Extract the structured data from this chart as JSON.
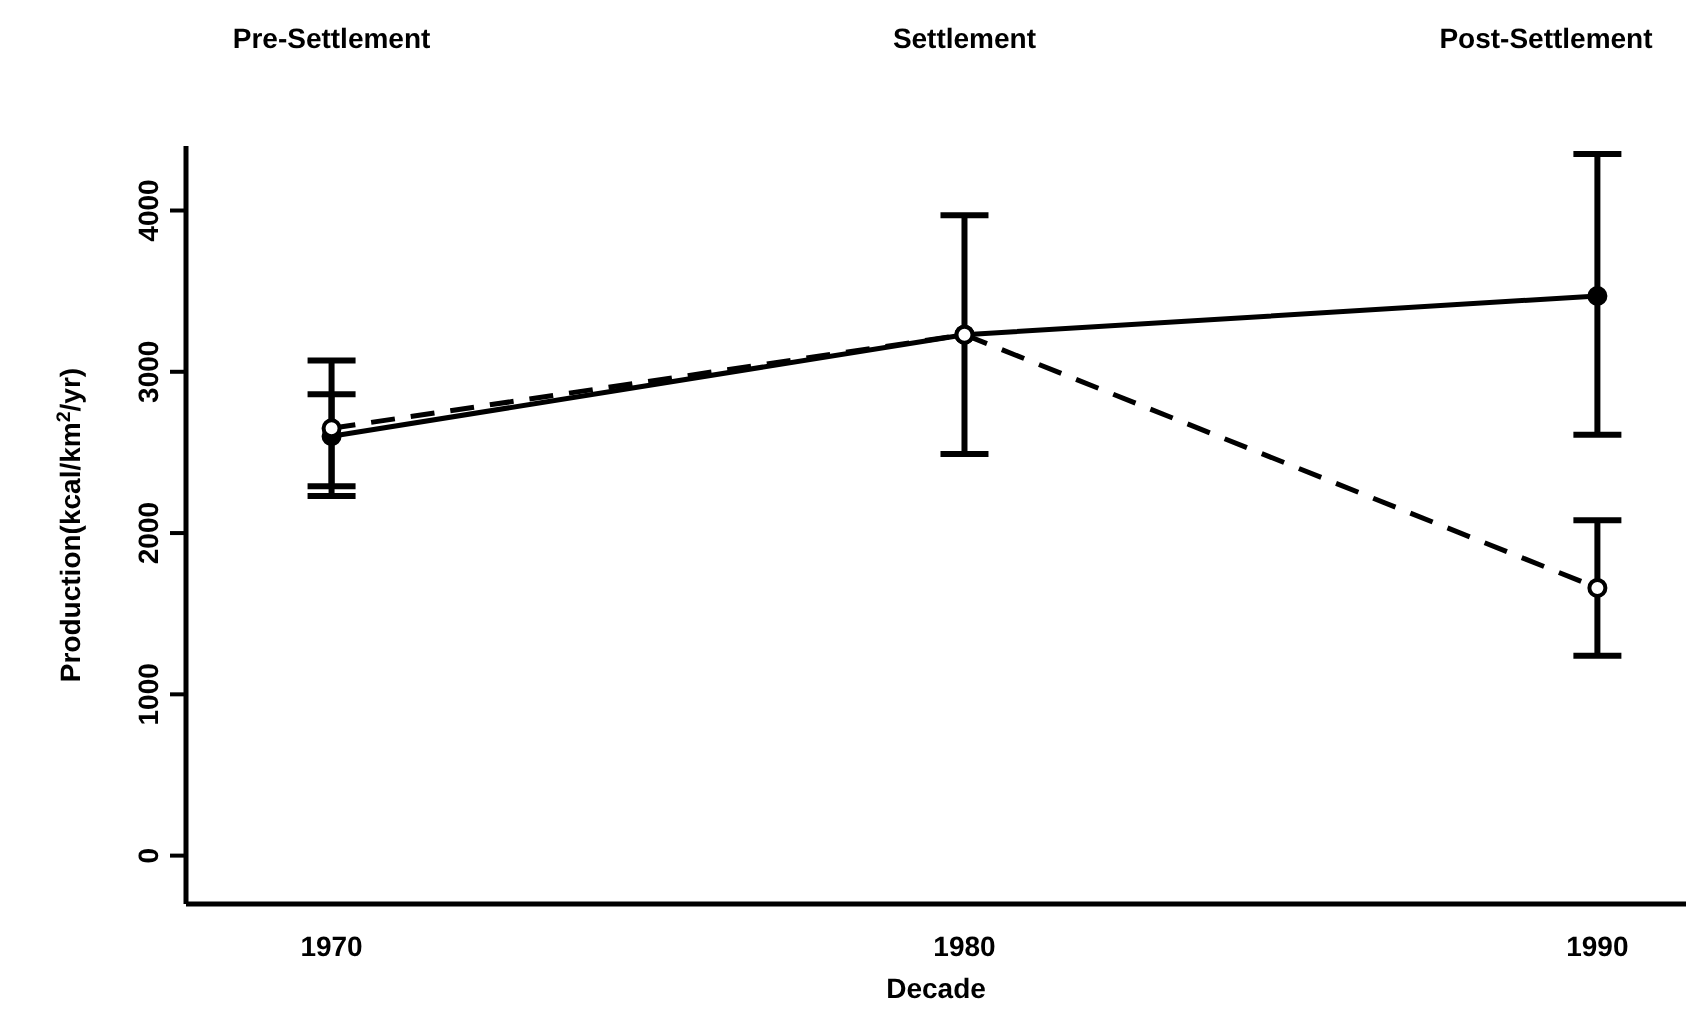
{
  "chart_data": {
    "type": "line",
    "xlabel": "Decade",
    "ylabel": "Production(kcal/km$^{2}$/yr)",
    "x": [
      1970,
      1980,
      1990
    ],
    "xlim": [
      1967.7,
      1991.4
    ],
    "xticks": [
      1970,
      1980,
      1990
    ],
    "ylim": [
      -300,
      4400
    ],
    "yticks": [
      0,
      1000,
      2000,
      3000,
      4000
    ],
    "grid": false,
    "marker": "circle",
    "series": [
      {
        "color": "#000000",
        "line_style": "solid",
        "values": [
          2600,
          3230,
          3470
        ],
        "errors": [
          [
            2290,
            2860
          ],
          [
            2490,
            3970
          ],
          [
            2610,
            4350
          ]
        ]
      },
      {
        "color": "#000000",
        "line_style": "dashed",
        "values": [
          2650,
          3230,
          1660
        ],
        "errors": [
          [
            2230,
            3070
          ],
          null,
          [
            1240,
            2080
          ]
        ]
      }
    ],
    "annotations": [
      "Pre-Settlement",
      "Settlement",
      "Post-Settlement"
    ]
  }
}
